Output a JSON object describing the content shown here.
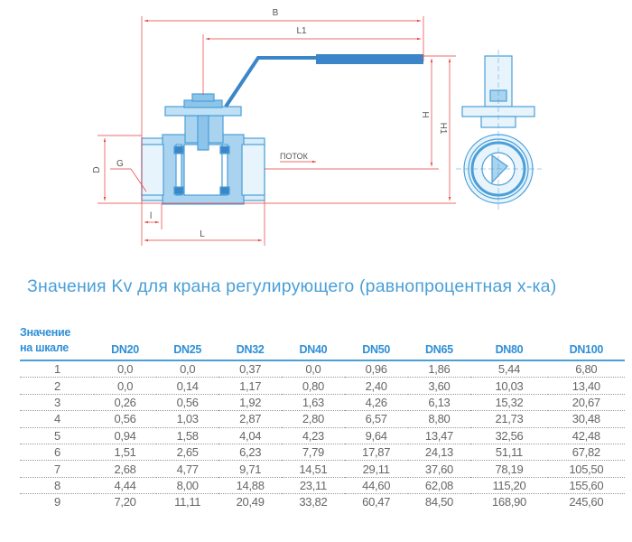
{
  "drawing": {
    "labels": {
      "B": "B",
      "L1": "L1",
      "H": "H",
      "H1": "H1",
      "D": "D",
      "G": "G",
      "l": "l",
      "L": "L",
      "flow": "ПОТОК"
    },
    "colors": {
      "body": "#4a9fd8",
      "fill": "#a9d3ef",
      "handle": "#3a86c8",
      "dimension": "#e83c3c"
    }
  },
  "title": "Значения Kv для крана регулирующего (равнопроцентная х-ка)",
  "table": {
    "header_line1": "Значение",
    "header_line2": "на шкале",
    "columns": [
      "DN20",
      "DN25",
      "DN32",
      "DN40",
      "DN50",
      "DN65",
      "DN80",
      "DN100"
    ],
    "rows": [
      {
        "scale": "1",
        "values": [
          "0,0",
          "0,0",
          "0,37",
          "0,0",
          "0,96",
          "1,86",
          "5,44",
          "6,80"
        ]
      },
      {
        "scale": "2",
        "values": [
          "0,0",
          "0,14",
          "1,17",
          "0,80",
          "2,40",
          "3,60",
          "10,03",
          "13,40"
        ]
      },
      {
        "scale": "3",
        "values": [
          "0,26",
          "0,56",
          "1,92",
          "1,63",
          "4,26",
          "6,13",
          "15,32",
          "20,67"
        ]
      },
      {
        "scale": "4",
        "values": [
          "0,56",
          "1,03",
          "2,87",
          "2,80",
          "6,57",
          "8,80",
          "21,73",
          "30,48"
        ]
      },
      {
        "scale": "5",
        "values": [
          "0,94",
          "1,58",
          "4,04",
          "4,23",
          "9,64",
          "13,47",
          "32,56",
          "42,48"
        ]
      },
      {
        "scale": "6",
        "values": [
          "1,51",
          "2,65",
          "6,23",
          "7,79",
          "17,87",
          "24,13",
          "51,11",
          "67,82"
        ]
      },
      {
        "scale": "7",
        "values": [
          "2,68",
          "4,77",
          "9,71",
          "14,51",
          "29,11",
          "37,60",
          "78,19",
          "105,50"
        ]
      },
      {
        "scale": "8",
        "values": [
          "4,44",
          "8,00",
          "14,88",
          "23,11",
          "44,60",
          "62,08",
          "115,20",
          "155,60"
        ]
      },
      {
        "scale": "9",
        "values": [
          "7,20",
          "11,11",
          "20,49",
          "33,82",
          "60,47",
          "84,50",
          "168,90",
          "245,60"
        ]
      }
    ]
  }
}
